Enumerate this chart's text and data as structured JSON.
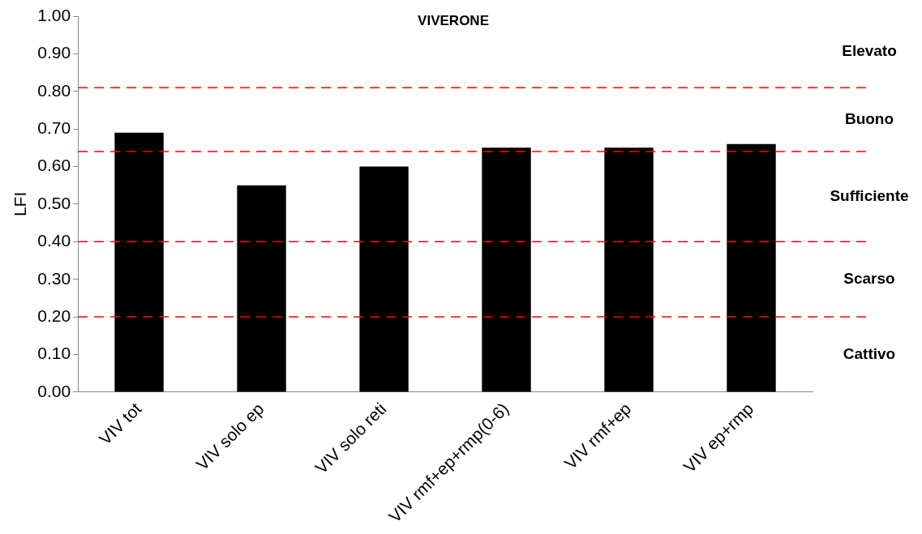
{
  "chart_data": {
    "type": "bar",
    "title": "VIVERONE",
    "ylabel": "LFI",
    "categories": [
      "VIV tot",
      "VIV solo ep",
      "VIV solo reti",
      "VIV rmf+ep+rmp(0-6)",
      "VIV rmf+ep",
      "VIV ep+rmp"
    ],
    "values": [
      0.69,
      0.55,
      0.6,
      0.65,
      0.65,
      0.66
    ],
    "color": "#000000",
    "ylim": [
      0,
      1
    ],
    "yticks": [
      {
        "value": 0,
        "label": "0.00"
      },
      {
        "value": 0.1,
        "label": "0.10"
      },
      {
        "value": 0.2,
        "label": "0.20"
      },
      {
        "value": 0.3,
        "label": "0.30"
      },
      {
        "value": 0.4,
        "label": "0.40"
      },
      {
        "value": 0.5,
        "label": "0.50"
      },
      {
        "value": 0.6,
        "label": "0.60"
      },
      {
        "value": 0.7,
        "label": "0.70"
      },
      {
        "value": 0.8,
        "label": "0.80"
      },
      {
        "value": 0.9,
        "label": "0.90"
      },
      {
        "value": 1,
        "label": "1.00"
      }
    ],
    "grid": false,
    "legend": false,
    "ref_lines": [
      {
        "axis": "y",
        "value": 0.81,
        "color": "#ff0000",
        "line_style": "dashed"
      },
      {
        "axis": "y",
        "value": 0.64,
        "color": "#ff0000",
        "line_style": "dashed"
      },
      {
        "axis": "y",
        "value": 0.4,
        "color": "#ff0000",
        "line_style": "dashed"
      },
      {
        "axis": "y",
        "value": 0.2,
        "color": "#ff0000",
        "line_style": "dashed"
      }
    ],
    "annotations": [
      "Elevato",
      "Buono",
      "Sufficiente",
      "Scarso",
      "Cattivo"
    ]
  }
}
